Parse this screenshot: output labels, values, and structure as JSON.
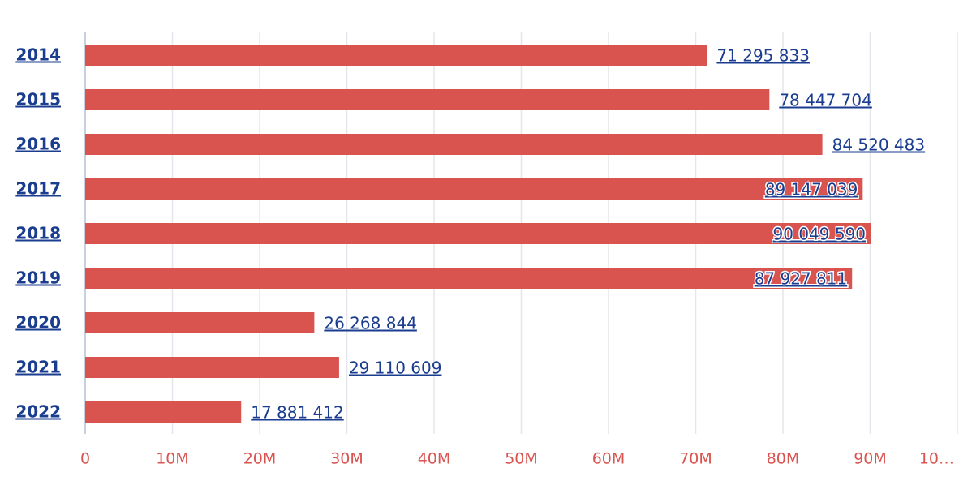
{
  "chart_data": {
    "type": "bar",
    "orientation": "horizontal",
    "categories": [
      "2014",
      "2015",
      "2016",
      "2017",
      "2018",
      "2019",
      "2020",
      "2021",
      "2022"
    ],
    "values": [
      71295833,
      78447704,
      84520483,
      89147039,
      90049590,
      87927811,
      26268844,
      29110609,
      17881412
    ],
    "value_labels": [
      "71 295 833",
      "78 447 704",
      "84 520 483",
      "89 147 039",
      "90 049 590",
      "87 927 811",
      "26 268 844",
      "29 110 609",
      "17 881 412"
    ],
    "color": "#d9534f",
    "xlim": [
      0,
      100000000
    ],
    "xticks": [
      0,
      {
        "value": 10000000,
        "label": "10M"
      },
      {
        "value": 20000000,
        "label": "20M"
      },
      {
        "value": 30000000,
        "label": "30M"
      },
      {
        "value": 40000000,
        "label": "40M"
      },
      {
        "value": 50000000,
        "label": "50M"
      },
      {
        "value": 60000000,
        "label": "60M"
      },
      {
        "value": 70000000,
        "label": "70M"
      },
      {
        "value": 80000000,
        "label": "80M"
      },
      {
        "value": 90000000,
        "label": "90M"
      },
      {
        "value": 100000000,
        "label": "10…"
      }
    ],
    "grid": true
  }
}
